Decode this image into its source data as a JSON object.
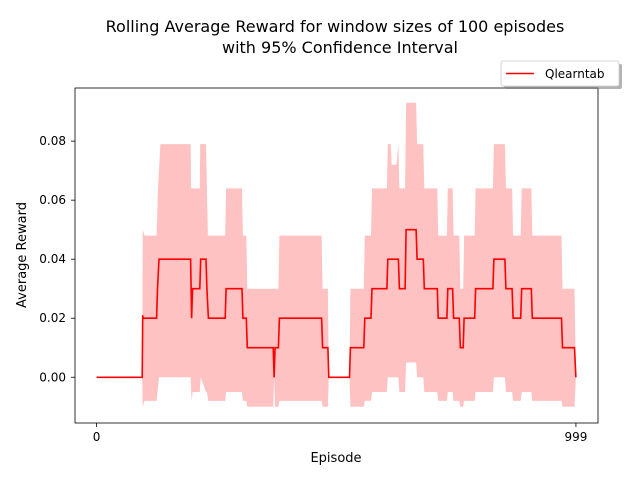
{
  "chart_data": {
    "type": "line",
    "title_line1": "Rolling Average Reward for window sizes of 100 episodes",
    "title_line2": "with 95% Confidence Interval",
    "xlabel": "Episode",
    "ylabel": "Average Reward",
    "xlim": [
      -45,
      1045
    ],
    "ylim": [
      -0.0155,
      0.098
    ],
    "x_ticks": [
      0,
      999
    ],
    "x_tick_labels": [
      "0",
      "999"
    ],
    "y_ticks": [
      0.0,
      0.02,
      0.04,
      0.06,
      0.08
    ],
    "y_tick_labels": [
      "0.00",
      "0.02",
      "0.04",
      "0.06",
      "0.08"
    ],
    "legend_position": "upper-right-outside",
    "colors": {
      "line": "#ff0000",
      "band": "#ff9999"
    },
    "series": [
      {
        "name": "Qlearntab",
        "points": [
          [
            0,
            0
          ],
          [
            95,
            0
          ],
          [
            96,
            0.021
          ],
          [
            97,
            0.02
          ],
          [
            125,
            0.02
          ],
          [
            127,
            0.03
          ],
          [
            130,
            0.04
          ],
          [
            196,
            0.04
          ],
          [
            198,
            0.02
          ],
          [
            200,
            0.03
          ],
          [
            215,
            0.03
          ],
          [
            217,
            0.04
          ],
          [
            228,
            0.04
          ],
          [
            230,
            0.03
          ],
          [
            233,
            0.02
          ],
          [
            268,
            0.02
          ],
          [
            270,
            0.03
          ],
          [
            303,
            0.03
          ],
          [
            305,
            0.02
          ],
          [
            312,
            0.02
          ],
          [
            314,
            0.01
          ],
          [
            368,
            0.01
          ],
          [
            370,
            0.0
          ],
          [
            372,
            0.01
          ],
          [
            379,
            0.01
          ],
          [
            381,
            0.02
          ],
          [
            469,
            0.02
          ],
          [
            471,
            0.01
          ],
          [
            482,
            0.01
          ],
          [
            484,
            0.0
          ],
          [
            527,
            0.0
          ],
          [
            529,
            0.01
          ],
          [
            557,
            0.01
          ],
          [
            559,
            0.02
          ],
          [
            572,
            0.02
          ],
          [
            574,
            0.03
          ],
          [
            605,
            0.03
          ],
          [
            607,
            0.04
          ],
          [
            629,
            0.04
          ],
          [
            631,
            0.03
          ],
          [
            643,
            0.03
          ],
          [
            645,
            0.05
          ],
          [
            666,
            0.05
          ],
          [
            668,
            0.04
          ],
          [
            681,
            0.04
          ],
          [
            683,
            0.03
          ],
          [
            710,
            0.03
          ],
          [
            712,
            0.02
          ],
          [
            730,
            0.02
          ],
          [
            732,
            0.03
          ],
          [
            742,
            0.03
          ],
          [
            744,
            0.02
          ],
          [
            756,
            0.02
          ],
          [
            758,
            0.01
          ],
          [
            764,
            0.01
          ],
          [
            766,
            0.02
          ],
          [
            788,
            0.02
          ],
          [
            790,
            0.03
          ],
          [
            826,
            0.03
          ],
          [
            828,
            0.04
          ],
          [
            851,
            0.04
          ],
          [
            853,
            0.03
          ],
          [
            866,
            0.03
          ],
          [
            868,
            0.02
          ],
          [
            884,
            0.02
          ],
          [
            886,
            0.03
          ],
          [
            906,
            0.03
          ],
          [
            908,
            0.02
          ],
          [
            969,
            0.02
          ],
          [
            971,
            0.01
          ],
          [
            996,
            0.01
          ],
          [
            999,
            0.0
          ]
        ],
        "band_upper": [
          [
            95,
            0.0
          ],
          [
            96,
            0.05
          ],
          [
            100,
            0.048
          ],
          [
            125,
            0.048
          ],
          [
            128,
            0.064
          ],
          [
            133,
            0.079
          ],
          [
            196,
            0.079
          ],
          [
            197,
            0.064
          ],
          [
            215,
            0.064
          ],
          [
            216,
            0.079
          ],
          [
            228,
            0.079
          ],
          [
            230,
            0.064
          ],
          [
            232,
            0.048
          ],
          [
            268,
            0.048
          ],
          [
            270,
            0.064
          ],
          [
            303,
            0.064
          ],
          [
            305,
            0.048
          ],
          [
            312,
            0.048
          ],
          [
            314,
            0.03
          ],
          [
            368,
            0.03
          ],
          [
            370,
            0.03
          ],
          [
            372,
            0.03
          ],
          [
            379,
            0.03
          ],
          [
            381,
            0.048
          ],
          [
            469,
            0.048
          ],
          [
            471,
            0.03
          ],
          [
            482,
            0.03
          ],
          [
            484,
            0.0
          ],
          [
            527,
            0.0
          ],
          [
            529,
            0.03
          ],
          [
            557,
            0.03
          ],
          [
            559,
            0.048
          ],
          [
            572,
            0.048
          ],
          [
            574,
            0.064
          ],
          [
            605,
            0.064
          ],
          [
            607,
            0.079
          ],
          [
            613,
            0.079
          ],
          [
            615,
            0.072
          ],
          [
            625,
            0.072
          ],
          [
            629,
            0.079
          ],
          [
            631,
            0.064
          ],
          [
            643,
            0.064
          ],
          [
            645,
            0.093
          ],
          [
            666,
            0.093
          ],
          [
            668,
            0.079
          ],
          [
            681,
            0.079
          ],
          [
            683,
            0.064
          ],
          [
            710,
            0.064
          ],
          [
            712,
            0.048
          ],
          [
            730,
            0.048
          ],
          [
            732,
            0.064
          ],
          [
            742,
            0.064
          ],
          [
            744,
            0.048
          ],
          [
            756,
            0.048
          ],
          [
            758,
            0.03
          ],
          [
            764,
            0.03
          ],
          [
            766,
            0.048
          ],
          [
            788,
            0.048
          ],
          [
            790,
            0.064
          ],
          [
            826,
            0.064
          ],
          [
            828,
            0.079
          ],
          [
            851,
            0.079
          ],
          [
            853,
            0.064
          ],
          [
            866,
            0.064
          ],
          [
            868,
            0.048
          ],
          [
            884,
            0.048
          ],
          [
            886,
            0.064
          ],
          [
            906,
            0.064
          ],
          [
            908,
            0.048
          ],
          [
            969,
            0.048
          ],
          [
            971,
            0.03
          ],
          [
            996,
            0.03
          ],
          [
            999,
            0.0
          ]
        ],
        "band_lower": [
          [
            999,
            0.0
          ],
          [
            996,
            -0.01
          ],
          [
            971,
            -0.01
          ],
          [
            969,
            -0.008
          ],
          [
            908,
            -0.008
          ],
          [
            906,
            -0.005
          ],
          [
            886,
            -0.005
          ],
          [
            884,
            -0.008
          ],
          [
            868,
            -0.008
          ],
          [
            866,
            -0.005
          ],
          [
            853,
            -0.005
          ],
          [
            851,
            0.0
          ],
          [
            828,
            0.0
          ],
          [
            826,
            -0.005
          ],
          [
            790,
            -0.005
          ],
          [
            788,
            -0.008
          ],
          [
            766,
            -0.008
          ],
          [
            764,
            -0.01
          ],
          [
            758,
            -0.01
          ],
          [
            756,
            -0.008
          ],
          [
            744,
            -0.008
          ],
          [
            742,
            -0.005
          ],
          [
            732,
            -0.005
          ],
          [
            730,
            -0.008
          ],
          [
            712,
            -0.008
          ],
          [
            710,
            -0.005
          ],
          [
            683,
            -0.005
          ],
          [
            681,
            0.0
          ],
          [
            668,
            0.0
          ],
          [
            666,
            0.005
          ],
          [
            645,
            0.005
          ],
          [
            643,
            -0.005
          ],
          [
            631,
            -0.005
          ],
          [
            629,
            0.0
          ],
          [
            607,
            0.0
          ],
          [
            605,
            -0.005
          ],
          [
            574,
            -0.005
          ],
          [
            572,
            -0.008
          ],
          [
            559,
            -0.008
          ],
          [
            557,
            -0.01
          ],
          [
            529,
            -0.01
          ],
          [
            527,
            0.0
          ],
          [
            484,
            0.0
          ],
          [
            482,
            -0.01
          ],
          [
            471,
            -0.01
          ],
          [
            469,
            -0.008
          ],
          [
            381,
            -0.008
          ],
          [
            379,
            -0.01
          ],
          [
            372,
            -0.01
          ],
          [
            370,
            0.0
          ],
          [
            368,
            -0.01
          ],
          [
            314,
            -0.01
          ],
          [
            312,
            -0.008
          ],
          [
            305,
            -0.008
          ],
          [
            303,
            -0.005
          ],
          [
            270,
            -0.005
          ],
          [
            268,
            -0.008
          ],
          [
            233,
            -0.008
          ],
          [
            230,
            -0.005
          ],
          [
            228,
            -0.005
          ],
          [
            217,
            0.0
          ],
          [
            215,
            -0.005
          ],
          [
            200,
            -0.005
          ],
          [
            198,
            -0.008
          ],
          [
            196,
            0.0
          ],
          [
            130,
            0.0
          ],
          [
            127,
            -0.005
          ],
          [
            125,
            -0.008
          ],
          [
            100,
            -0.008
          ],
          [
            96,
            -0.01
          ],
          [
            95,
            0.0
          ]
        ]
      }
    ]
  }
}
